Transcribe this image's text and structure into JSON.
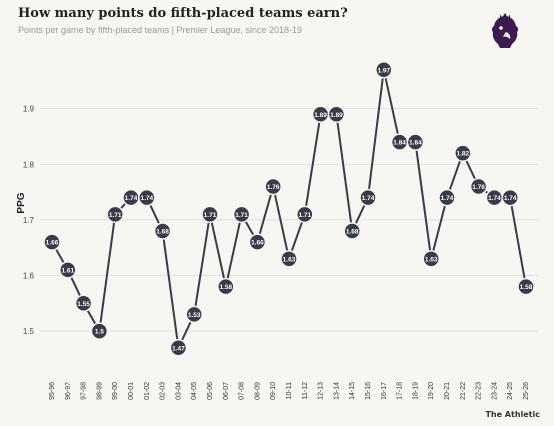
{
  "header": {
    "title": "How many points do fifth-placed teams earn?",
    "subtitle": "Points per game by fifth-placed teams | Premier League, since 2018-19"
  },
  "footer": {
    "credit": "The Athletic"
  },
  "logo": {
    "icon": "premier-league-lion-icon",
    "color": "#3d1a4f"
  },
  "colors": {
    "line": "#3a3a4a",
    "marker": "#3a3a4a",
    "marker_text": "#ffffff",
    "grid": "#d9d8d4"
  },
  "chart_data": {
    "type": "line",
    "title": "How many points do fifth-placed teams earn?",
    "subtitle": "Points per game by fifth-placed teams | Premier League, since 2018-19",
    "xlabel": "",
    "ylabel": "PPG",
    "ylim": [
      1.43,
      2.02
    ],
    "yticks": [
      1.5,
      1.6,
      1.7,
      1.8,
      1.9
    ],
    "grid": true,
    "categories": [
      "95-96",
      "96-97",
      "97-98",
      "98-99",
      "99-00",
      "00-01",
      "01-02",
      "02-03",
      "03-04",
      "04-05",
      "05-06",
      "06-07",
      "07-08",
      "08-09",
      "09-10",
      "10-11",
      "11-12",
      "12-13",
      "13-14",
      "14-15",
      "15-16",
      "16-17",
      "17-18",
      "18-19",
      "19-20",
      "20-21",
      "21-22",
      "22-23",
      "23-24",
      "24-25",
      "25-26"
    ],
    "values": [
      1.66,
      1.61,
      1.55,
      1.5,
      1.71,
      1.74,
      1.74,
      1.68,
      1.47,
      1.53,
      1.71,
      1.58,
      1.71,
      1.66,
      1.76,
      1.63,
      1.71,
      1.89,
      1.89,
      1.68,
      1.74,
      1.97,
      1.84,
      1.84,
      1.63,
      1.74,
      1.82,
      1.76,
      1.74,
      1.74,
      1.58
    ],
    "labels": [
      "1.66",
      "1.61",
      "1.55",
      "1.5",
      "1.71",
      "1.74",
      "1.74",
      "1.68",
      "1.47",
      "1.53",
      "1.71",
      "1.58",
      "1.71",
      "1.66",
      "1.76",
      "1.63",
      "1.71",
      "1.89",
      "1.89",
      "1.68",
      "1.74",
      "1.97",
      "1.84",
      "1.84",
      "1.63",
      "1.74",
      "1.82",
      "1.76",
      "1.74",
      "1.74",
      "1.58"
    ]
  }
}
